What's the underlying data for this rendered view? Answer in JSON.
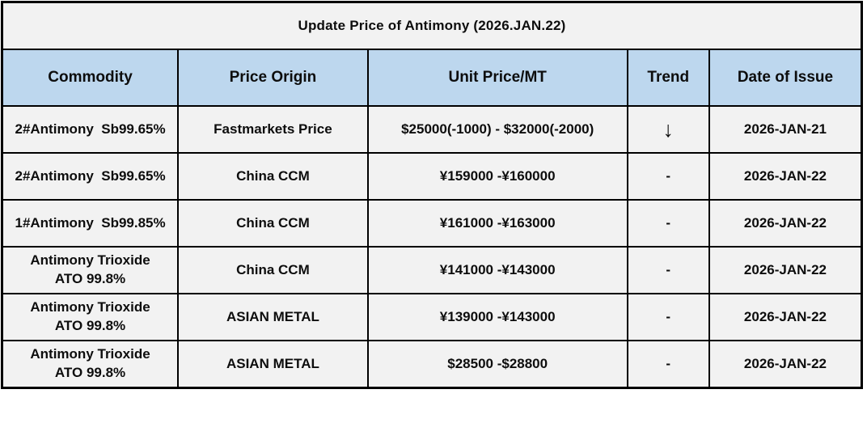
{
  "title": "Update Price of Antimony (2026.JAN.22)",
  "colors": {
    "header_bg": "#BDD7EE",
    "row_bg": "#F2F2F2",
    "border": "#000000",
    "text": "#0d0d0d"
  },
  "table": {
    "columns": [
      {
        "key": "commodity",
        "label": "Commodity"
      },
      {
        "key": "origin",
        "label": "Price Origin"
      },
      {
        "key": "price",
        "label": "Unit Price/MT"
      },
      {
        "key": "trend",
        "label": "Trend"
      },
      {
        "key": "date",
        "label": "Date of Issue"
      }
    ],
    "rows": [
      {
        "commodity": "2#Antimony  Sb99.65%",
        "origin": "Fastmarkets Price",
        "price": "$25000(-1000) - $32000(-2000)",
        "trend": "↓",
        "trend_type": "down",
        "date": "2026-JAN-21"
      },
      {
        "commodity": "2#Antimony  Sb99.65%",
        "origin": "China CCM",
        "price": "¥159000 -¥160000",
        "trend": "-",
        "trend_type": "flat",
        "date": "2026-JAN-22"
      },
      {
        "commodity": "1#Antimony  Sb99.85%",
        "origin": "China CCM",
        "price": "¥161000 -¥163000",
        "trend": "-",
        "trend_type": "flat",
        "date": "2026-JAN-22"
      },
      {
        "commodity": "Antimony Trioxide\nATO 99.8%",
        "origin": "China CCM",
        "price": "¥141000 -¥143000",
        "trend": "-",
        "trend_type": "flat",
        "date": "2026-JAN-22"
      },
      {
        "commodity": "Antimony Trioxide\nATO 99.8%",
        "origin": "ASIAN METAL",
        "price": "¥139000 -¥143000",
        "trend": "-",
        "trend_type": "flat",
        "date": "2026-JAN-22"
      },
      {
        "commodity": "Antimony Trioxide\nATO 99.8%",
        "origin": "ASIAN METAL",
        "price": "$28500 -$28800",
        "trend": "-",
        "trend_type": "flat",
        "date": "2026-JAN-22"
      }
    ]
  },
  "chart_data": {
    "type": "table",
    "title": "Update Price of Antimony (2026.JAN.22)",
    "columns": [
      "Commodity",
      "Price Origin",
      "Unit Price/MT",
      "Trend",
      "Date of Issue"
    ],
    "rows": [
      [
        "2#Antimony  Sb99.65%",
        "Fastmarkets Price",
        "$25000(-1000) - $32000(-2000)",
        "↓",
        "2026-JAN-21"
      ],
      [
        "2#Antimony  Sb99.65%",
        "China CCM",
        "¥159000 -¥160000",
        "-",
        "2026-JAN-22"
      ],
      [
        "1#Antimony  Sb99.85%",
        "China CCM",
        "¥161000 -¥163000",
        "-",
        "2026-JAN-22"
      ],
      [
        "Antimony Trioxide ATO 99.8%",
        "China CCM",
        "¥141000 -¥143000",
        "-",
        "2026-JAN-22"
      ],
      [
        "Antimony Trioxide ATO 99.8%",
        "ASIAN METAL",
        "¥139000 -¥143000",
        "-",
        "2026-JAN-22"
      ],
      [
        "Antimony Trioxide ATO 99.8%",
        "ASIAN METAL",
        "$28500 -$28800",
        "-",
        "2026-JAN-22"
      ]
    ]
  }
}
